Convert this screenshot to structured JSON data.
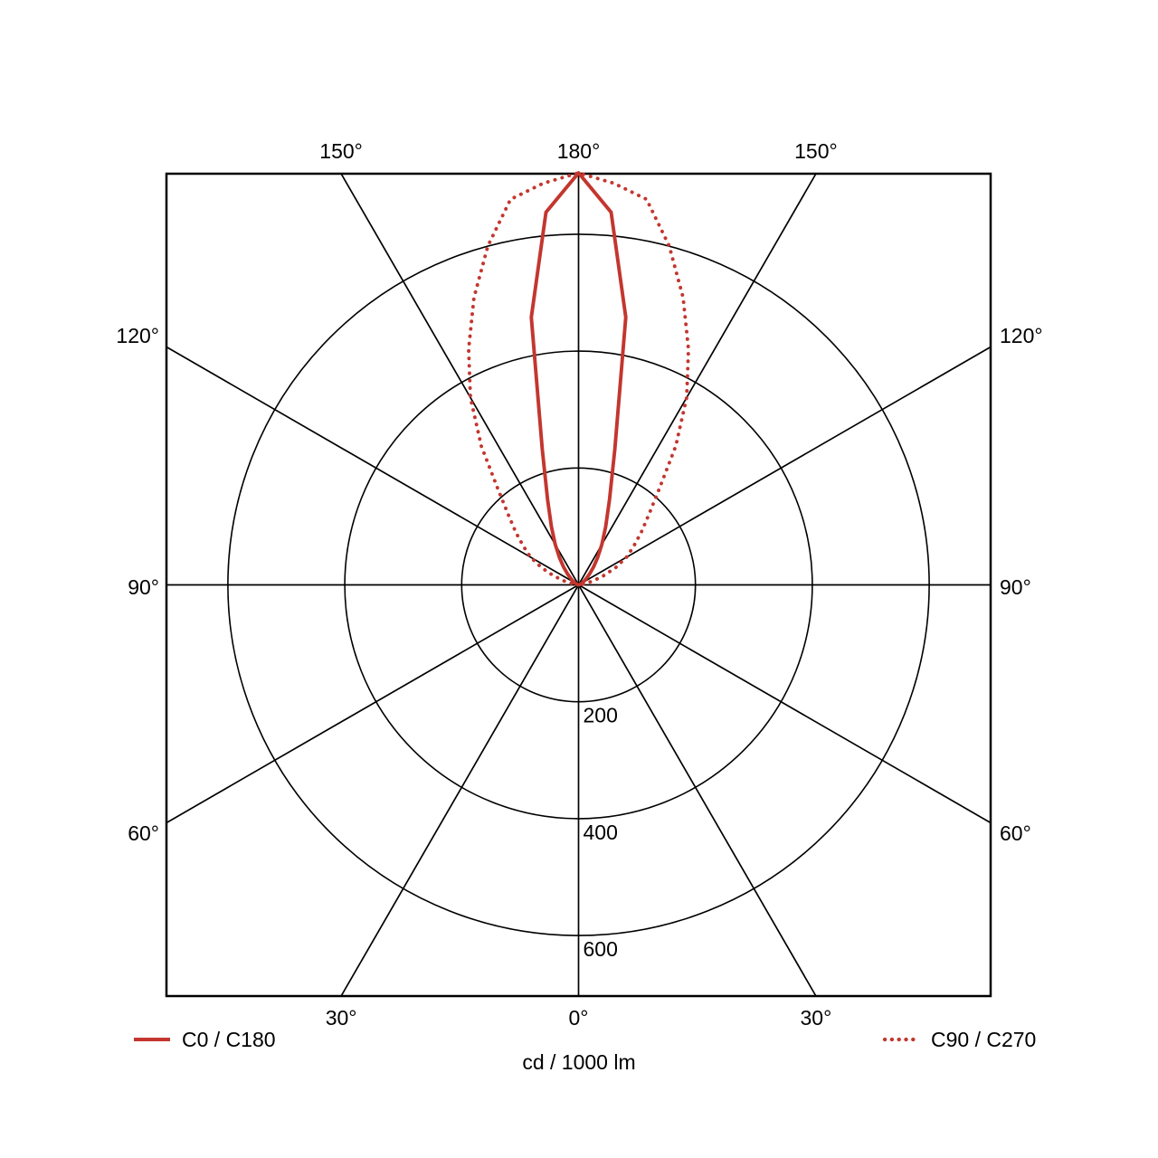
{
  "colors": {
    "curve_red": "#c3362e",
    "grid_black": "#000000",
    "background": "#ffffff"
  },
  "chart_data": {
    "type": "line",
    "subtype": "polar-photometric-luminous-intensity",
    "title": "",
    "unit_label": "cd / 1000 lm",
    "radial_axis": {
      "tick_labels": [
        "200",
        "400",
        "600"
      ],
      "tick_values": [
        200,
        400,
        600
      ],
      "ring_step": 200,
      "max_visible_value": 705,
      "grid": true
    },
    "angular_axis": {
      "grid_step_deg": 30,
      "labels_top": [
        "150°",
        "180°",
        "150°"
      ],
      "labels_bottom": [
        "30°",
        "0°",
        "30°"
      ],
      "labels_left": [
        "120°",
        "90°",
        "60°"
      ],
      "labels_right": [
        "120°",
        "90°",
        "60°"
      ]
    },
    "gamma_deg": [
      0,
      5,
      10,
      15,
      20,
      25,
      30,
      35,
      40,
      45,
      50,
      55,
      60,
      65,
      70,
      75,
      80,
      85,
      90
    ],
    "series": [
      {
        "name": "C0 / C180",
        "style": "solid",
        "color": "#c3362e",
        "values_cd_per_1000lm": [
          705,
          640,
          465,
          240,
          155,
          110,
          80,
          57,
          40,
          27,
          18,
          12,
          8,
          5,
          3,
          2,
          1,
          0,
          0
        ]
      },
      {
        "name": "C90 / C270",
        "style": "dotted",
        "color": "#c3362e",
        "values_cd_per_1000lm": [
          705,
          690,
          670,
          600,
          523,
          445,
          370,
          290,
          215,
          170,
          140,
          115,
          95,
          70,
          45,
          25,
          10,
          3,
          0
        ]
      }
    ],
    "legend": [
      {
        "label": "C0 / C180",
        "style": "solid",
        "position": "bottom-left"
      },
      {
        "label": "C90 / C270",
        "style": "dotted",
        "position": "bottom-right"
      }
    ]
  }
}
